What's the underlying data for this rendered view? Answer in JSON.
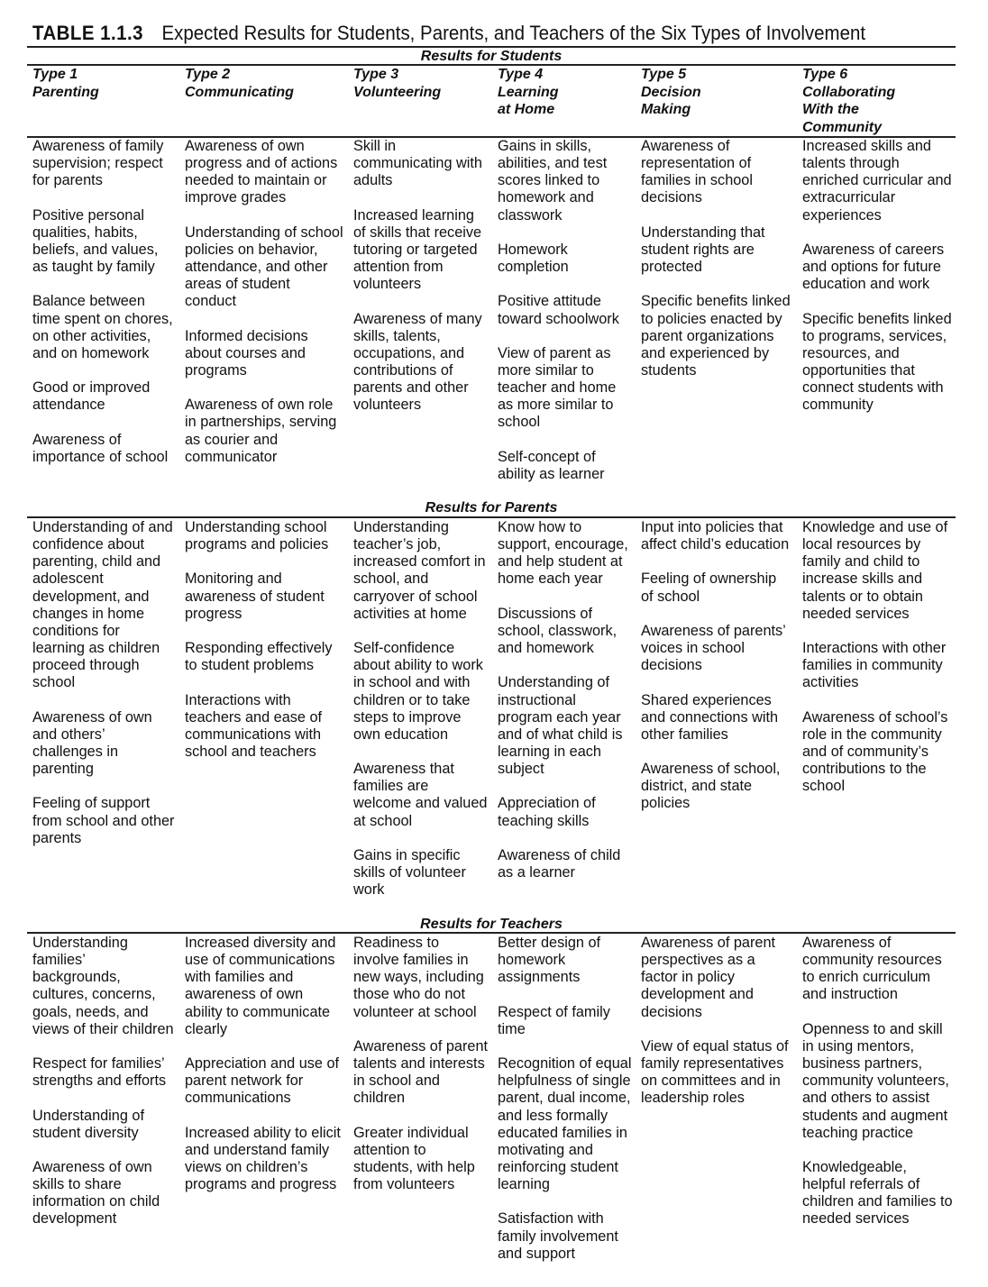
{
  "title": {
    "label": "TABLE 1.1.3",
    "text": "Expected Results for Students, Parents, and Teachers of the Six Types of Involvement"
  },
  "columns": [
    "Type 1\nParenting",
    "Type 2\nCommunicating",
    "Type 3\nVolunteering",
    "Type 4\nLearning\nat Home",
    "Type 5\nDecision\nMaking",
    "Type 6\nCollaborating\nWith the\nCommunity"
  ],
  "sections": [
    {
      "heading": "Results for Students",
      "cells": [
        [
          "Awareness of family\nsupervision; respect\nfor parents",
          "Positive personal\nqualities, habits,\nbeliefs, and values,\nas taught by family",
          "Balance between\ntime spent on chores,\non other activities,\nand on homework",
          "Good or improved\nattendance",
          "Awareness of\nimportance of school"
        ],
        [
          "Awareness of own\nprogress and of actions\nneeded to maintain or\nimprove grades",
          "Understanding of school\npolicies on behavior,\nattendance, and other\nareas of student\nconduct",
          "Informed decisions\nabout courses and\nprograms",
          "Awareness of own role\nin partnerships, serving\nas courier and\ncommunicator"
        ],
        [
          "Skill in\ncommunicating with\nadults",
          "Increased learning\nof skills that receive\ntutoring or targeted\nattention from\nvolunteers",
          "Awareness of many\nskills, talents,\noccupations, and\ncontributions of\nparents and other\nvolunteers"
        ],
        [
          "Gains in skills,\nabilities, and test\nscores linked to\nhomework and\nclasswork",
          "Homework\ncompletion",
          "Positive attitude\ntoward schoolwork",
          "View of parent as\nmore similar to\nteacher and home\nas more similar to\nschool",
          "Self-concept of\nability as learner"
        ],
        [
          "Awareness of\nrepresentation of\nfamilies in school\ndecisions",
          "Understanding that\nstudent rights are\nprotected",
          "Specific benefits linked\nto policies enacted by\nparent organizations\nand experienced by\nstudents"
        ],
        [
          "Increased skills and\ntalents through\nenriched curricular and\nextracurricular\nexperiences",
          "Awareness of careers\nand options for future\neducation and work",
          "Specific benefits linked\nto programs, services,\nresources, and\nopportunities that\nconnect students with\ncommunity"
        ]
      ]
    },
    {
      "heading": "Results for Parents",
      "cells": [
        [
          "Understanding of and\nconfidence about\nparenting, child and\nadolescent\ndevelopment, and\nchanges in home\nconditions for\nlearning as children\nproceed through\nschool",
          "Awareness of own\nand others’\nchallenges in\nparenting",
          "Feeling of support\nfrom school and other\nparents"
        ],
        [
          "Understanding school\nprograms and policies",
          "Monitoring and\nawareness of student\nprogress",
          "Responding effectively\nto student problems",
          "Interactions with\nteachers and ease of\ncommunications with\nschool and teachers"
        ],
        [
          "Understanding\nteacher’s job,\nincreased comfort in\nschool, and\ncarryover of school\nactivities at home",
          "Self-confidence\nabout ability to work\nin school and with\nchildren or to take\nsteps to improve\nown education",
          "Awareness that\nfamilies are\nwelcome and valued\nat school",
          "Gains in specific\nskills of volunteer\nwork"
        ],
        [
          "Know how to\nsupport, encourage,\nand help student at\nhome each year",
          "Discussions of\nschool, classwork,\nand homework",
          "Understanding of\ninstructional\nprogram each year\nand of what child is\nlearning in each\nsubject",
          "Appreciation of\nteaching skills",
          "Awareness of child\nas a learner"
        ],
        [
          "Input into policies that\naffect child’s education",
          "Feeling of ownership\nof school",
          "Awareness of parents’\nvoices in school\ndecisions",
          "Shared experiences\nand connections with\nother families",
          "Awareness of school,\ndistrict, and state\npolicies"
        ],
        [
          "Knowledge and use of\nlocal resources by\nfamily and child to\nincrease skills and\ntalents or to obtain\nneeded services",
          "Interactions with other\nfamilies in community\nactivities",
          "Awareness of school’s\nrole in the community\nand of community’s\ncontributions to the\nschool"
        ]
      ]
    },
    {
      "heading": "Results for Teachers",
      "cells": [
        [
          "Understanding\nfamilies’\nbackgrounds,\ncultures, concerns,\ngoals, needs, and\nviews of their children",
          "Respect for families’\nstrengths and efforts",
          "Understanding of\nstudent diversity",
          "Awareness of own\nskills to share\ninformation on child\ndevelopment"
        ],
        [
          "Increased diversity and\nuse of communications\nwith families and\nawareness of own\nability to communicate\nclearly",
          "Appreciation and use of\nparent network for\ncommunications",
          "Increased ability to elicit\nand understand family\nviews on children’s\nprograms and progress"
        ],
        [
          "Readiness to\ninvolve families in\nnew ways, including\nthose who do not\nvolunteer at school",
          "Awareness of parent\ntalents and interests\nin school and\nchildren",
          "Greater individual\nattention to\nstudents, with help\nfrom volunteers"
        ],
        [
          "Better design of\nhomework\nassignments",
          "Respect of family\ntime",
          "Recognition of equal\nhelpfulness of single\nparent, dual income,\nand less formally\neducated families in\nmotivating and\nreinforcing student\nlearning",
          "Satisfaction with\nfamily involvement\nand support"
        ],
        [
          "Awareness of parent\nperspectives as a\nfactor in policy\ndevelopment and\ndecisions",
          "View of equal status of\nfamily representatives\non committees and in\nleadership roles"
        ],
        [
          "Awareness of\ncommunity resources\nto enrich curriculum\nand instruction",
          "Openness to and skill\nin using mentors,\nbusiness partners,\ncommunity volunteers,\nand others to assist\nstudents and augment\nteaching practice",
          "Knowledgeable,\nhelpful referrals of\nchildren and families to\nneeded services"
        ]
      ]
    }
  ]
}
